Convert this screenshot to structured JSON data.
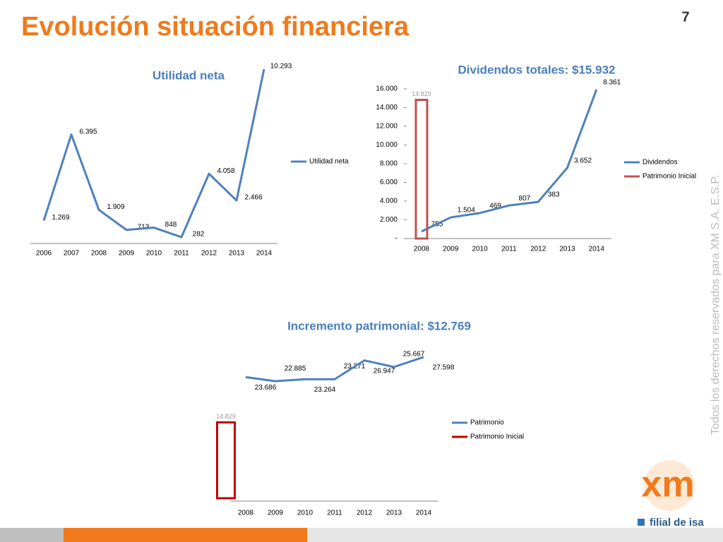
{
  "title": "Evolución situación financiera",
  "page_number": "7",
  "watermark": "Todos los derechos reservados para XM S.A. E.S.P.",
  "logo": {
    "brand": "xm",
    "tagline": "filial de isa"
  },
  "chart_data": [
    {
      "type": "line",
      "title": "Utilidad neta",
      "categories": [
        "2006",
        "2007",
        "2008",
        "2009",
        "2010",
        "2011",
        "2012",
        "2013",
        "2014"
      ],
      "series": [
        {
          "name": "Utilidad neta",
          "color": "#4f81bd",
          "values": [
            1269,
            6395,
            1909,
            713,
            848,
            282,
            4058,
            2466,
            10293
          ],
          "value_labels": [
            "1.269",
            "6.395",
            "1.909",
            "713",
            "848",
            "282",
            "4.058",
            "2.466",
            "10.293"
          ]
        }
      ]
    },
    {
      "type": "line",
      "title": "Dividendos totales: $15.932",
      "categories": [
        "2008",
        "2009",
        "2010",
        "2011",
        "2012",
        "2013",
        "2014"
      ],
      "ylim": [
        0,
        16000
      ],
      "yticks": [
        {
          "value": 0,
          "label": "-"
        },
        {
          "value": 2000,
          "label": "2.000"
        },
        {
          "value": 4000,
          "label": "4.000"
        },
        {
          "value": 6000,
          "label": "6.000"
        },
        {
          "value": 8000,
          "label": "8.000"
        },
        {
          "value": 10000,
          "label": "10.000"
        },
        {
          "value": 12000,
          "label": "12.000"
        },
        {
          "value": 14000,
          "label": "14.000"
        },
        {
          "value": 16000,
          "label": "16.000"
        }
      ],
      "series": [
        {
          "name": "Dividendos",
          "color": "#4f81bd",
          "cumulative": true,
          "values": [
            755,
            1504,
            469,
            807,
            383,
            3652,
            8361
          ],
          "value_labels": [
            "755",
            "1.504",
            "469",
            "807",
            "383",
            "3.652",
            "8.361"
          ]
        },
        {
          "name": "Patrimonio Inicial",
          "type": "bar",
          "color": "#c0504d",
          "values": [
            14829,
            null,
            null,
            null,
            null,
            null,
            null
          ],
          "value_labels": [
            "14.829",
            null,
            null,
            null,
            null,
            null,
            null
          ]
        }
      ]
    },
    {
      "type": "line",
      "title": "Incremento patrimonial: $12.769",
      "categories": [
        "2008",
        "2009",
        "2010",
        "2011",
        "2012",
        "2013",
        "2014"
      ],
      "series": [
        {
          "name": "Patrimonio",
          "color": "#4f81bd",
          "values": [
            23686,
            22885,
            23264,
            23271,
            26947,
            25667,
            27598
          ],
          "value_labels": [
            "23.686",
            "22.885",
            "23.264",
            "23.271",
            "26.947",
            "25.667",
            "27.598"
          ]
        },
        {
          "name": "Patrimonio Inicial",
          "type": "bar",
          "color": "#c00000",
          "values": [
            14829,
            null,
            null,
            null,
            null,
            null,
            null
          ],
          "value_labels": [
            "14.829",
            null,
            null,
            null,
            null,
            null,
            null
          ]
        }
      ]
    }
  ]
}
